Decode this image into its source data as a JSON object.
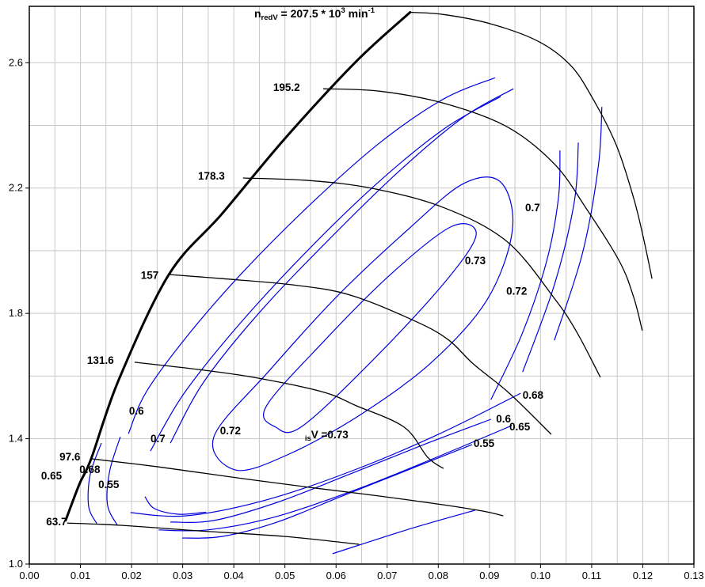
{
  "chart_data": {
    "type": "line",
    "description": "Compressor map: reduced-speed lines (black) with surge line and isentropic efficiency contours (blue)",
    "title": {
      "n": "n",
      "n_sub": "redV",
      "equals": " = 207.5 * 10",
      "exponent": "3",
      "unit": " min",
      "unit_exponent": "-1",
      "pos": [
        0.044,
        2.775
      ]
    },
    "colors": {
      "speed_line": "#000000",
      "surge_line": "#000000",
      "contour": "#0000dd",
      "grid": "#c8c8c8",
      "axis": "#000000",
      "background": "#ffffff",
      "text": "#000000"
    },
    "x_axis": {
      "min": 0.0,
      "max": 0.13,
      "major_step": 0.01,
      "minor_step": 0.005,
      "tick_labels": [
        "0.00",
        "0.01",
        "0.02",
        "0.03",
        "0.04",
        "0.05",
        "0.06",
        "0.07",
        "0.08",
        "0.09",
        "0.10",
        "0.11",
        "0.12",
        "0.13"
      ],
      "tick_values": [
        0.0,
        0.01,
        0.02,
        0.03,
        0.04,
        0.05,
        0.06,
        0.07,
        0.08,
        0.09,
        0.1,
        0.11,
        0.12,
        0.13
      ]
    },
    "y_axis": {
      "min": 1.0,
      "max": 2.78,
      "minor_step": 0.2,
      "tick_labels": [
        "1.0",
        "1.4",
        "1.8",
        "2.2",
        "2.6"
      ],
      "tick_values": [
        1.0,
        1.4,
        1.8,
        2.2,
        2.6
      ],
      "grid_values": [
        1.2,
        1.4,
        1.6,
        1.8,
        2.0,
        2.2,
        2.4,
        2.6
      ]
    },
    "surge_line": {
      "width": 3,
      "points": [
        [
          0.0071,
          1.139
        ],
        [
          0.0098,
          1.255
        ],
        [
          0.0121,
          1.336
        ],
        [
          0.0175,
          1.588
        ],
        [
          0.0273,
          1.924
        ],
        [
          0.0377,
          2.118
        ],
        [
          0.05,
          2.358
        ],
        [
          0.064,
          2.605
        ],
        [
          0.0745,
          2.761
        ]
      ]
    },
    "speed_lines": [
      {
        "label": "63.7",
        "label_pos": [
          0.0033,
          1.154
        ],
        "points": [
          [
            0.0074,
            1.131
          ],
          [
            0.0175,
            1.124
          ],
          [
            0.033,
            1.106
          ],
          [
            0.05,
            1.088
          ],
          [
            0.0645,
            1.063
          ]
        ]
      },
      {
        "label": "97.6",
        "label_pos": [
          0.0059,
          1.361
        ],
        "points": [
          [
            0.0121,
            1.336
          ],
          [
            0.0253,
            1.31
          ],
          [
            0.0408,
            1.275
          ],
          [
            0.0562,
            1.242
          ],
          [
            0.0686,
            1.217
          ],
          [
            0.081,
            1.189
          ],
          [
            0.0888,
            1.169
          ],
          [
            0.0927,
            1.154
          ]
        ]
      },
      {
        "label": "131.6",
        "label_pos": [
          0.0113,
          1.669
        ],
        "points": [
          [
            0.0206,
            1.644
          ],
          [
            0.033,
            1.621
          ],
          [
            0.0438,
            1.596
          ],
          [
            0.0573,
            1.55
          ],
          [
            0.064,
            1.505
          ],
          [
            0.0733,
            1.437
          ],
          [
            0.0779,
            1.341
          ],
          [
            0.081,
            1.305
          ]
        ]
      },
      {
        "label": "157",
        "label_pos": [
          0.0218,
          1.941
        ],
        "points": [
          [
            0.0273,
            1.924
          ],
          [
            0.0377,
            1.911
          ],
          [
            0.0516,
            1.891
          ],
          [
            0.0629,
            1.858
          ],
          [
            0.0759,
            1.772
          ],
          [
            0.0821,
            1.714
          ],
          [
            0.0869,
            1.638
          ],
          [
            0.0939,
            1.545
          ],
          [
            0.1021,
            1.414
          ]
        ]
      },
      {
        "label": "178.3",
        "label_pos": [
          0.033,
          2.257
        ],
        "points": [
          [
            0.0418,
            2.232
          ],
          [
            0.0547,
            2.224
          ],
          [
            0.0671,
            2.199
          ],
          [
            0.081,
            2.138
          ],
          [
            0.0934,
            2.03
          ],
          [
            0.1027,
            1.848
          ],
          [
            0.1071,
            1.74
          ],
          [
            0.1117,
            1.596
          ]
        ]
      },
      {
        "label": "195.2",
        "label_pos": [
          0.0477,
          2.54
        ],
        "points": [
          [
            0.0575,
            2.517
          ],
          [
            0.0686,
            2.509
          ],
          [
            0.081,
            2.471
          ],
          [
            0.0934,
            2.396
          ],
          [
            0.1027,
            2.277
          ],
          [
            0.1089,
            2.136
          ],
          [
            0.1154,
            1.967
          ],
          [
            0.1182,
            1.853
          ],
          [
            0.1199,
            1.745
          ]
        ]
      },
      {
        "label": "",
        "label_pos": [
          0.0745,
          2.8
        ],
        "points": [
          [
            0.0745,
            2.761
          ],
          [
            0.081,
            2.754
          ],
          [
            0.0903,
            2.724
          ],
          [
            0.0996,
            2.668
          ],
          [
            0.1058,
            2.593
          ],
          [
            0.11,
            2.492
          ],
          [
            0.1148,
            2.338
          ],
          [
            0.1182,
            2.169
          ],
          [
            0.1202,
            2.035
          ],
          [
            0.1218,
            1.911
          ]
        ]
      }
    ],
    "efficiency_contours": [
      {
        "level": "0.55",
        "part": "left-cap",
        "closed": false,
        "points": [
          [
            0.0141,
            1.386
          ],
          [
            0.0119,
            1.285
          ],
          [
            0.0116,
            1.184
          ],
          [
            0.0132,
            1.129
          ]
        ]
      },
      {
        "level": "0.6",
        "part": "left-cap",
        "closed": false,
        "points": [
          [
            0.0178,
            1.406
          ],
          [
            0.0157,
            1.295
          ],
          [
            0.0153,
            1.189
          ],
          [
            0.0172,
            1.124
          ]
        ]
      },
      {
        "level": "0.6",
        "part": "left-flank",
        "closed": false,
        "points": [
          [
            0.0194,
            1.416
          ],
          [
            0.0229,
            1.55
          ],
          [
            0.0315,
            1.74
          ],
          [
            0.0423,
            1.941
          ],
          [
            0.0555,
            2.156
          ],
          [
            0.0686,
            2.345
          ],
          [
            0.081,
            2.484
          ],
          [
            0.0911,
            2.552
          ]
        ]
      },
      {
        "level": "0.7",
        "part": "left-flank",
        "closed": false,
        "points": [
          [
            0.0237,
            1.361
          ],
          [
            0.0302,
            1.543
          ],
          [
            0.0408,
            1.76
          ],
          [
            0.0544,
            2.0
          ],
          [
            0.0683,
            2.219
          ],
          [
            0.0813,
            2.391
          ],
          [
            0.0922,
            2.492
          ]
        ]
      },
      {
        "level": "0.68",
        "part": "left-flank",
        "closed": false,
        "points": [
          [
            0.0276,
            1.386
          ],
          [
            0.0342,
            1.583
          ],
          [
            0.0454,
            1.81
          ],
          [
            0.0593,
            2.047
          ],
          [
            0.073,
            2.264
          ],
          [
            0.0849,
            2.426
          ],
          [
            0.0947,
            2.517
          ]
        ]
      },
      {
        "level": "0.72",
        "part": "loop",
        "closed": true,
        "points": [
          [
            0.0361,
            1.406
          ],
          [
            0.047,
            1.618
          ],
          [
            0.0601,
            1.853
          ],
          [
            0.0741,
            2.068
          ],
          [
            0.0849,
            2.214
          ],
          [
            0.0922,
            2.219
          ],
          [
            0.0945,
            2.068
          ],
          [
            0.0896,
            1.845
          ],
          [
            0.0787,
            1.644
          ],
          [
            0.0648,
            1.477
          ],
          [
            0.0508,
            1.351
          ],
          [
            0.0404,
            1.3
          ]
        ]
      },
      {
        "level": "0.73",
        "part": "loop",
        "closed": true,
        "points": [
          [
            0.0463,
            1.502
          ],
          [
            0.0572,
            1.704
          ],
          [
            0.0711,
            1.931
          ],
          [
            0.0827,
            2.078
          ],
          [
            0.0874,
            2.05
          ],
          [
            0.0812,
            1.898
          ],
          [
            0.0672,
            1.651
          ],
          [
            0.0533,
            1.439
          ],
          [
            0.0482,
            1.437
          ]
        ]
      },
      {
        "level": "0.68",
        "part": "lower-flank",
        "closed": false,
        "points": [
          [
            0.0961,
            1.545
          ],
          [
            0.0803,
            1.416
          ],
          [
            0.0632,
            1.298
          ],
          [
            0.0462,
            1.204
          ],
          [
            0.0307,
            1.154
          ],
          [
            0.0198,
            1.164
          ]
        ]
      },
      {
        "level": "0.65",
        "part": "lower-flank",
        "closed": false,
        "points": [
          [
            0.0944,
            1.442
          ],
          [
            0.0804,
            1.346
          ],
          [
            0.0643,
            1.24
          ],
          [
            0.0482,
            1.151
          ],
          [
            0.0349,
            1.109
          ],
          [
            0.0253,
            1.109
          ]
        ]
      },
      {
        "level": "0.6",
        "part": "lower-flank",
        "closed": false,
        "points": [
          [
            0.0903,
            1.462
          ],
          [
            0.0779,
            1.386
          ],
          [
            0.0624,
            1.285
          ],
          [
            0.0485,
            1.197
          ],
          [
            0.0361,
            1.139
          ],
          [
            0.0276,
            1.134
          ]
        ]
      },
      {
        "level": "0.55",
        "part": "lower-flank",
        "closed": false,
        "points": [
          [
            0.0866,
            1.381
          ],
          [
            0.0748,
            1.305
          ],
          [
            0.0609,
            1.215
          ],
          [
            0.0485,
            1.134
          ],
          [
            0.0377,
            1.088
          ],
          [
            0.0299,
            1.083
          ]
        ]
      },
      {
        "level": "0.6",
        "part": "right-flank",
        "closed": false,
        "points": [
          [
            0.1027,
            1.714
          ],
          [
            0.1082,
            1.992
          ],
          [
            0.1113,
            2.269
          ],
          [
            0.112,
            2.459
          ]
        ]
      },
      {
        "level": "0.7",
        "part": "right-flank",
        "closed": false,
        "points": [
          [
            0.0965,
            1.613
          ],
          [
            0.1027,
            1.891
          ],
          [
            0.1066,
            2.156
          ],
          [
            0.1074,
            2.345
          ]
        ]
      },
      {
        "level": "0.68",
        "part": "right-flank",
        "closed": false,
        "points": [
          [
            0.0903,
            1.525
          ],
          [
            0.0965,
            1.739
          ],
          [
            0.1012,
            1.967
          ],
          [
            0.1035,
            2.169
          ],
          [
            0.1038,
            2.32
          ]
        ]
      },
      {
        "level": "0.7",
        "part": "bottom-cap",
        "closed": false,
        "points": [
          [
            0.0226,
            1.215
          ],
          [
            0.0245,
            1.177
          ],
          [
            0.0291,
            1.159
          ],
          [
            0.0346,
            1.166
          ]
        ]
      },
      {
        "level": "0.55",
        "part": "bottom",
        "closed": false,
        "points": [
          [
            0.0593,
            1.033
          ],
          [
            0.0748,
            1.114
          ],
          [
            0.0872,
            1.172
          ]
        ]
      }
    ],
    "efficiency_labels": [
      {
        "text": "0.6",
        "pos": [
          0.0195,
          1.507
        ]
      },
      {
        "text": "0.7",
        "pos": [
          0.0237,
          1.419
        ]
      },
      {
        "text": "0.72",
        "pos": [
          0.0373,
          1.444
        ]
      },
      {
        "text": "0.73",
        "pos": [
          0.0852,
          1.987
        ]
      },
      {
        "text": "0.72",
        "pos": [
          0.0933,
          1.89
        ]
      },
      {
        "text": "0.7",
        "pos": [
          0.097,
          2.156
        ]
      },
      {
        "text": "0.68",
        "pos": [
          0.0965,
          1.558
        ]
      },
      {
        "text": "0.6",
        "pos": [
          0.0913,
          1.482
        ]
      },
      {
        "text": "0.65",
        "pos": [
          0.0939,
          1.457
        ]
      },
      {
        "text": "0.55",
        "pos": [
          0.0869,
          1.404
        ]
      },
      {
        "text": "0.65",
        "pos": [
          0.0023,
          1.3
        ]
      },
      {
        "text": "0.68",
        "pos": [
          0.0098,
          1.321
        ]
      },
      {
        "text": "0.55",
        "pos": [
          0.0135,
          1.273
        ]
      }
    ],
    "iso_efficiency_annotation": {
      "sub": "is",
      "main": "V ",
      "value": "=0.73",
      "pos": [
        0.0539,
        1.432
      ]
    }
  }
}
